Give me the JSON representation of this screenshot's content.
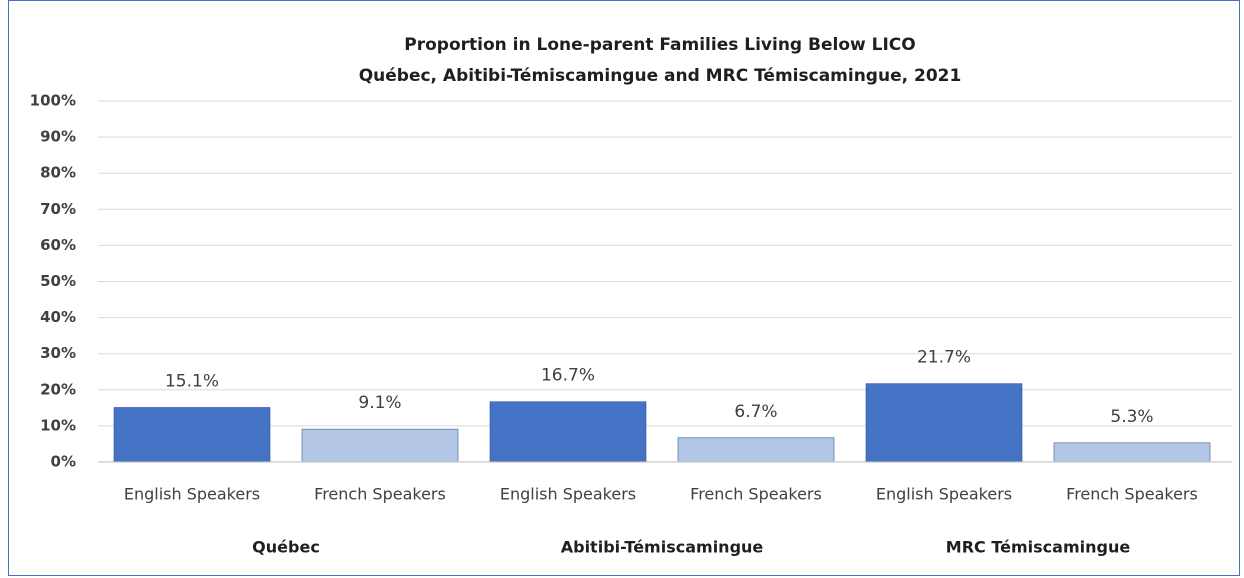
{
  "chart_data": {
    "type": "bar",
    "title": "Proportion in Lone-parent Families Living Below LICO",
    "subtitle": "Québec, Abitibi-Témiscamingue and MRC Témiscamingue, 2021",
    "categories": [
      "Québec",
      "Abitibi-Témiscamingue",
      "MRC Témiscamingue"
    ],
    "series": [
      {
        "name": "English Speakers",
        "color": "#4472c4",
        "values": [
          15.1,
          16.7,
          21.7
        ],
        "value_labels": [
          "15.1%",
          "16.7%",
          "21.7%"
        ]
      },
      {
        "name": "French Speakers",
        "color": "#b4c7e7",
        "values": [
          9.1,
          6.7,
          5.3
        ],
        "value_labels": [
          "9.1%",
          "6.7%",
          "5.3%"
        ]
      }
    ],
    "ylim": [
      0,
      100
    ],
    "yticks": [
      {
        "value": 0,
        "label": "0%"
      },
      {
        "value": 10,
        "label": "10%"
      },
      {
        "value": 20,
        "label": "20%"
      },
      {
        "value": 30,
        "label": "30%"
      },
      {
        "value": 40,
        "label": "40%"
      },
      {
        "value": 50,
        "label": "50%"
      },
      {
        "value": 60,
        "label": "60%"
      },
      {
        "value": 70,
        "label": "70%"
      },
      {
        "value": 80,
        "label": "80%"
      },
      {
        "value": 90,
        "label": "90%"
      },
      {
        "value": 100,
        "label": "100%"
      }
    ],
    "grid": true
  }
}
